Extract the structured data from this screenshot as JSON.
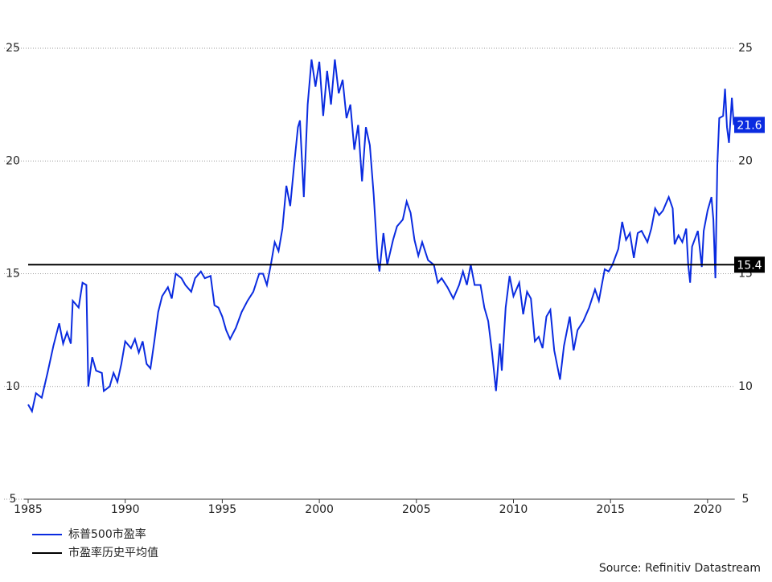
{
  "chart_data": {
    "type": "line",
    "source": "Source: Refinitiv Datastream",
    "xlim": [
      1985,
      2021.4
    ],
    "xticks": [
      1985,
      1990,
      1995,
      2000,
      2005,
      2010,
      2015,
      2020
    ],
    "ylim": [
      5,
      25
    ],
    "yticks": [
      5,
      10,
      15,
      20,
      25
    ],
    "y2lim": [
      5,
      25
    ],
    "y2ticks": [
      5,
      10,
      15,
      20,
      25
    ],
    "grid": true,
    "series": [
      {
        "name": "标普500市盈率",
        "color": "#0a2be0",
        "x": [
          1985.0,
          1985.2,
          1985.4,
          1985.7,
          1986.0,
          1986.3,
          1986.6,
          1986.8,
          1987.0,
          1987.2,
          1987.3,
          1987.6,
          1987.8,
          1988.0,
          1988.1,
          1988.3,
          1988.5,
          1988.8,
          1988.9,
          1989.2,
          1989.4,
          1989.6,
          1989.8,
          1990.0,
          1990.3,
          1990.5,
          1990.7,
          1990.9,
          1991.1,
          1991.3,
          1991.5,
          1991.7,
          1991.9,
          1992.2,
          1992.4,
          1992.6,
          1992.9,
          1993.1,
          1993.4,
          1993.6,
          1993.9,
          1994.1,
          1994.4,
          1994.6,
          1994.8,
          1995.0,
          1995.2,
          1995.4,
          1995.7,
          1996.0,
          1996.3,
          1996.6,
          1996.9,
          1997.1,
          1997.3,
          1997.5,
          1997.7,
          1997.9,
          1998.1,
          1998.3,
          1998.5,
          1998.7,
          1998.9,
          1999.0,
          1999.2,
          1999.4,
          1999.6,
          1999.8,
          2000.0,
          2000.2,
          2000.4,
          2000.6,
          2000.8,
          2001.0,
          2001.2,
          2001.4,
          2001.6,
          2001.8,
          2002.0,
          2002.2,
          2002.4,
          2002.6,
          2002.8,
          2003.0,
          2003.1,
          2003.3,
          2003.5,
          2003.8,
          2004.0,
          2004.3,
          2004.5,
          2004.7,
          2004.9,
          2005.1,
          2005.3,
          2005.6,
          2005.9,
          2006.1,
          2006.3,
          2006.6,
          2006.9,
          2007.2,
          2007.4,
          2007.6,
          2007.8,
          2008.0,
          2008.3,
          2008.5,
          2008.7,
          2008.9,
          2009.1,
          2009.3,
          2009.4,
          2009.6,
          2009.8,
          2010.0,
          2010.3,
          2010.5,
          2010.7,
          2010.9,
          2011.1,
          2011.3,
          2011.5,
          2011.7,
          2011.9,
          2012.1,
          2012.4,
          2012.6,
          2012.9,
          2013.1,
          2013.3,
          2013.6,
          2013.9,
          2014.2,
          2014.4,
          2014.7,
          2014.9,
          2015.1,
          2015.4,
          2015.6,
          2015.8,
          2016.0,
          2016.2,
          2016.4,
          2016.6,
          2016.9,
          2017.1,
          2017.3,
          2017.5,
          2017.7,
          2017.9,
          2018.0,
          2018.2,
          2018.3,
          2018.5,
          2018.7,
          2018.9,
          2019.0,
          2019.1,
          2019.2,
          2019.5,
          2019.7,
          2019.8,
          2020.0,
          2020.2,
          2020.3,
          2020.4,
          2020.5,
          2020.6,
          2020.8,
          2020.9,
          2021.0,
          2021.1,
          2021.25,
          2021.35
        ],
        "values": [
          9.2,
          8.9,
          9.7,
          9.5,
          10.6,
          11.8,
          12.8,
          11.9,
          12.4,
          11.9,
          13.8,
          13.5,
          14.6,
          14.5,
          10.0,
          11.3,
          10.7,
          10.6,
          9.8,
          10.0,
          10.6,
          10.2,
          11.0,
          12.0,
          11.7,
          12.1,
          11.5,
          12.0,
          11.0,
          10.8,
          12.0,
          13.3,
          14.0,
          14.4,
          13.9,
          15.0,
          14.8,
          14.5,
          14.2,
          14.8,
          15.1,
          14.8,
          14.9,
          13.6,
          13.5,
          13.1,
          12.5,
          12.1,
          12.6,
          13.3,
          13.8,
          14.2,
          15.0,
          15.0,
          14.5,
          15.4,
          16.4,
          16.0,
          17.0,
          18.9,
          18.0,
          19.8,
          21.5,
          21.8,
          18.4,
          22.5,
          24.5,
          23.3,
          24.4,
          22.0,
          24.0,
          22.5,
          24.5,
          23.0,
          23.6,
          21.9,
          22.5,
          20.5,
          21.6,
          19.1,
          21.5,
          20.7,
          18.5,
          15.7,
          15.1,
          16.8,
          15.4,
          16.5,
          17.1,
          17.4,
          18.2,
          17.7,
          16.5,
          15.8,
          16.4,
          15.6,
          15.4,
          14.6,
          14.8,
          14.4,
          13.9,
          14.5,
          15.1,
          14.5,
          15.4,
          14.5,
          14.5,
          13.5,
          12.9,
          11.5,
          9.8,
          11.9,
          10.7,
          13.5,
          14.9,
          14.0,
          14.6,
          13.2,
          14.2,
          13.9,
          12.0,
          12.2,
          11.7,
          13.1,
          13.4,
          11.6,
          10.3,
          11.8,
          13.1,
          11.6,
          12.5,
          12.9,
          13.5,
          14.3,
          13.8,
          15.2,
          15.1,
          15.4,
          16.1,
          17.3,
          16.5,
          16.8,
          15.7,
          16.8,
          16.9,
          16.4,
          17.0,
          17.9,
          17.6,
          17.8,
          18.2,
          18.4,
          17.9,
          16.3,
          16.7,
          16.4,
          17.0,
          15.4,
          14.6,
          16.2,
          16.9,
          15.3,
          16.9,
          17.8,
          18.4,
          17.4,
          14.8,
          19.8,
          21.9,
          22.0,
          23.2,
          21.5,
          20.8,
          22.8,
          21.6
        ]
      },
      {
        "name": "市盈率历史平均值",
        "color": "#000000",
        "x": [
          1985,
          2021.4
        ],
        "values": [
          15.4,
          15.4
        ]
      }
    ]
  }
}
